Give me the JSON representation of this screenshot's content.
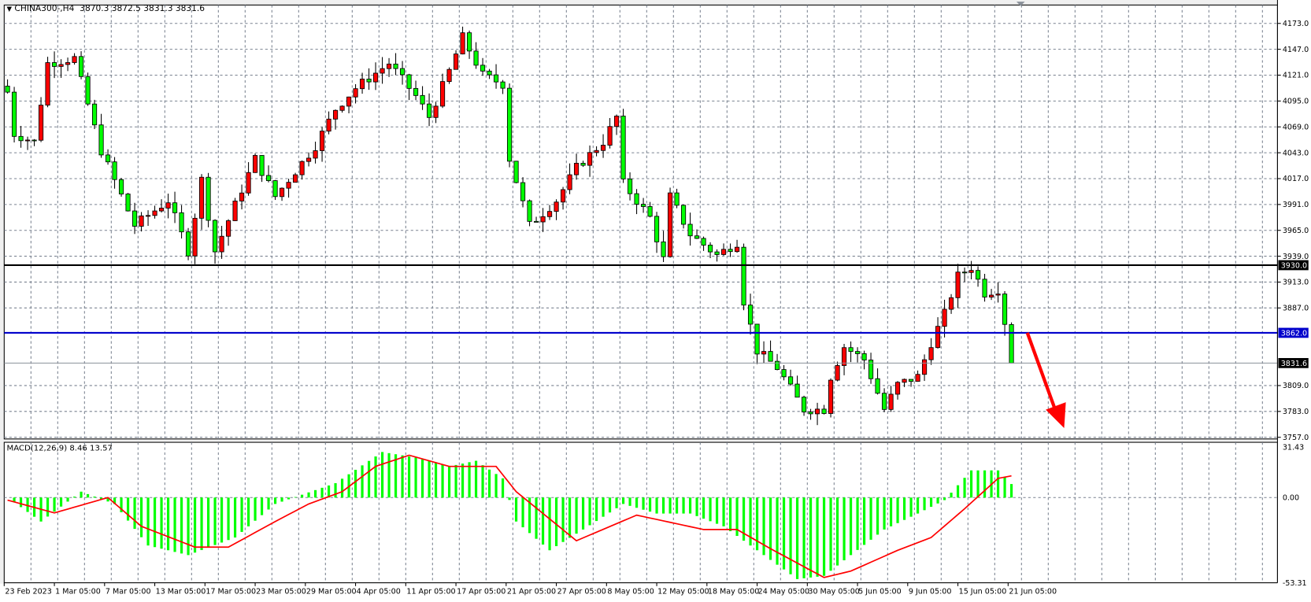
{
  "header": {
    "symbol_timeframe": "CHINA300-,H4",
    "ohlc": "3870.3 3872.5 3831.3 3831.6",
    "menu_icon": "triangle-down-icon"
  },
  "macd_header": {
    "label": "MACD(12,26,9) 8.46 13.57"
  },
  "colors": {
    "bull_candle": "#ff0000",
    "bear_candle": "#00ff00",
    "support_line": "#000000",
    "level_line": "#0000cc",
    "signal_line": "#ff0000",
    "histogram": "#00ff00",
    "arrow": "#ff0000",
    "grid": "#7a8290"
  },
  "chart_data": [
    {
      "type": "candlestick",
      "symbol": "CHINA300-",
      "timeframe": "H4",
      "ylim": [
        3757,
        4173
      ],
      "y_ticks": [
        "4173.0",
        "4147.0",
        "4121.0",
        "4095.0",
        "4069.0",
        "4043.0",
        "4017.0",
        "3991.0",
        "3965.0",
        "3939.0",
        "3913.0",
        "3887.0",
        "3809.0",
        "3783.0",
        "3757.0"
      ],
      "x_ticks": [
        "23 Feb 2023",
        "1 Mar 05:00",
        "7 Mar 05:00",
        "13 Mar 05:00",
        "17 Mar 05:00",
        "23 Mar 05:00",
        "29 Mar 05:00",
        "4 Apr 05:00",
        "11 Apr 05:00",
        "17 Apr 05:00",
        "21 Apr 05:00",
        "27 Apr 05:00",
        "8 May 05:00",
        "12 May 05:00",
        "18 May 05:00",
        "24 May 05:00",
        "30 May 05:00",
        "5 Jun 05:00",
        "9 Jun 05:00",
        "15 Jun 05:00",
        "21 Jun 05:00"
      ],
      "grid": true,
      "close_keypoints": [
        [
          0,
          4104
        ],
        [
          1,
          4062
        ],
        [
          4,
          4054
        ],
        [
          6,
          4133
        ],
        [
          10,
          4138
        ],
        [
          14,
          4045
        ],
        [
          19,
          3970
        ],
        [
          24,
          3995
        ],
        [
          27,
          3944
        ],
        [
          29,
          4016
        ],
        [
          31,
          3944
        ],
        [
          37,
          4037
        ],
        [
          40,
          3999
        ],
        [
          46,
          4050
        ],
        [
          49,
          4087
        ],
        [
          52,
          4108
        ],
        [
          57,
          4133
        ],
        [
          61,
          4100
        ],
        [
          63,
          4079
        ],
        [
          66,
          4125
        ],
        [
          68,
          4159
        ],
        [
          71,
          4121
        ],
        [
          74,
          4112
        ],
        [
          75,
          4037
        ],
        [
          78,
          3970
        ],
        [
          82,
          3995
        ],
        [
          85,
          4028
        ],
        [
          89,
          4054
        ],
        [
          91,
          4079
        ],
        [
          92,
          4012
        ],
        [
          96,
          3978
        ],
        [
          98,
          3936
        ],
        [
          99,
          3999
        ],
        [
          102,
          3961
        ],
        [
          106,
          3940
        ],
        [
          109,
          3953
        ],
        [
          110,
          3894
        ],
        [
          112,
          3844
        ],
        [
          115,
          3827
        ],
        [
          119,
          3785
        ],
        [
          122,
          3785
        ],
        [
          123,
          3818
        ],
        [
          125,
          3848
        ],
        [
          128,
          3835
        ],
        [
          131,
          3785
        ],
        [
          133,
          3810
        ],
        [
          136,
          3818
        ],
        [
          138,
          3852
        ],
        [
          140,
          3881
        ],
        [
          142,
          3919
        ],
        [
          144,
          3928
        ],
        [
          146,
          3902
        ],
        [
          148,
          3906
        ],
        [
          149,
          3873
        ],
        [
          150,
          3831.6
        ]
      ],
      "last_candle": {
        "open": 3870.3,
        "high": 3872.5,
        "low": 3831.3,
        "close": 3831.6
      },
      "horizontal_lines": [
        {
          "price": 3930.0,
          "label": "3930.0",
          "color": "#000000"
        },
        {
          "price": 3862.0,
          "label": "3862.0",
          "color": "#0000cc"
        }
      ],
      "bid_label": "3831.6",
      "annotation": "red arrow pointing down"
    },
    {
      "type": "bar+line",
      "indicator": "MACD(12,26,9)",
      "ylim": [
        -53.31,
        31.43
      ],
      "y_ticks": [
        "31.43",
        "0.00",
        "-53.31"
      ],
      "histogram_keypoints": [
        [
          0,
          0
        ],
        [
          5,
          -15
        ],
        [
          11,
          3.7
        ],
        [
          16,
          -4
        ],
        [
          21,
          -30
        ],
        [
          27,
          -36
        ],
        [
          34,
          -25
        ],
        [
          40,
          -4
        ],
        [
          49,
          9
        ],
        [
          56,
          28.5
        ],
        [
          61,
          25
        ],
        [
          66,
          19.5
        ],
        [
          70,
          23
        ],
        [
          74,
          12
        ],
        [
          76,
          -15
        ],
        [
          81,
          -33
        ],
        [
          86,
          -20
        ],
        [
          92,
          -4
        ],
        [
          97,
          -10
        ],
        [
          102,
          -10
        ],
        [
          107,
          -18
        ],
        [
          113,
          -36
        ],
        [
          118,
          -51
        ],
        [
          122,
          -49
        ],
        [
          126,
          -36
        ],
        [
          131,
          -20
        ],
        [
          136,
          -10
        ],
        [
          140,
          -1.6
        ],
        [
          144,
          17
        ],
        [
          148,
          17
        ],
        [
          150,
          8.46
        ]
      ],
      "signal_keypoints": [
        [
          0,
          -1.6
        ],
        [
          7,
          -9.6
        ],
        [
          15,
          0
        ],
        [
          20,
          -18
        ],
        [
          28,
          -31
        ],
        [
          33,
          -31
        ],
        [
          40,
          -15
        ],
        [
          45,
          -4
        ],
        [
          50,
          3.7
        ],
        [
          55,
          19.5
        ],
        [
          60,
          26.5
        ],
        [
          66,
          19.5
        ],
        [
          73,
          19.5
        ],
        [
          76,
          3.7
        ],
        [
          85,
          -27
        ],
        [
          94,
          -11
        ],
        [
          104,
          -20
        ],
        [
          109,
          -20
        ],
        [
          114,
          -32
        ],
        [
          122,
          -50
        ],
        [
          126,
          -46
        ],
        [
          133,
          -33
        ],
        [
          138,
          -25
        ],
        [
          143,
          -7
        ],
        [
          148,
          12
        ],
        [
          150,
          13.57
        ]
      ]
    }
  ]
}
